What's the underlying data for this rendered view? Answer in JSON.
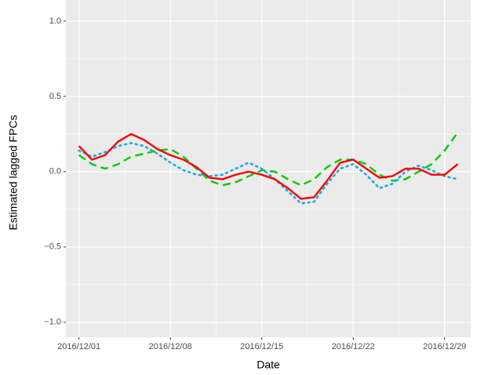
{
  "chart_data": {
    "type": "line",
    "x_label": "Date",
    "y_label": "Estimated lagged FPCs",
    "x": [
      "2016/12/01",
      "2016/12/02",
      "2016/12/03",
      "2016/12/04",
      "2016/12/05",
      "2016/12/06",
      "2016/12/07",
      "2016/12/08",
      "2016/12/09",
      "2016/12/10",
      "2016/12/11",
      "2016/12/12",
      "2016/12/13",
      "2016/12/14",
      "2016/12/15",
      "2016/12/16",
      "2016/12/17",
      "2016/12/18",
      "2016/12/19",
      "2016/12/20",
      "2016/12/21",
      "2016/12/22",
      "2016/12/23",
      "2016/12/24",
      "2016/12/25",
      "2016/12/26",
      "2016/12/27",
      "2016/12/28",
      "2016/12/29",
      "2016/12/30"
    ],
    "series": [
      {
        "color": "#00cc00",
        "dash": "dashed",
        "values": [
          0.11,
          0.05,
          0.02,
          0.05,
          0.1,
          0.12,
          0.14,
          0.15,
          0.1,
          0.02,
          -0.06,
          -0.09,
          -0.07,
          -0.03,
          0.01,
          0.0,
          -0.05,
          -0.09,
          -0.05,
          0.03,
          0.08,
          0.08,
          0.05,
          -0.02,
          -0.06,
          -0.05,
          0.0,
          0.05,
          0.14,
          0.26
        ]
      },
      {
        "color": "#1fa8e8",
        "dash": "dotted",
        "values": [
          0.14,
          0.1,
          0.13,
          0.17,
          0.19,
          0.17,
          0.12,
          0.06,
          0.01,
          -0.02,
          -0.03,
          -0.02,
          0.02,
          0.06,
          0.02,
          -0.05,
          -0.13,
          -0.21,
          -0.2,
          -0.08,
          0.02,
          0.05,
          -0.02,
          -0.11,
          -0.08,
          0.0,
          0.04,
          0.01,
          -0.03,
          -0.05
        ]
      },
      {
        "color": "#ff0000",
        "dash": "solid",
        "values": [
          0.17,
          0.08,
          0.11,
          0.2,
          0.25,
          0.21,
          0.15,
          0.11,
          0.08,
          0.03,
          -0.04,
          -0.05,
          -0.02,
          0.0,
          -0.02,
          -0.05,
          -0.11,
          -0.18,
          -0.17,
          -0.06,
          0.06,
          0.08,
          0.02,
          -0.04,
          -0.03,
          0.02,
          0.02,
          -0.02,
          -0.02,
          0.05
        ]
      }
    ],
    "xlim": [
      "2016/11/30",
      "2016/12/31"
    ],
    "xticks": [
      "2016/12/01",
      "2016/12/08",
      "2016/12/15",
      "2016/12/22",
      "2016/12/29"
    ],
    "ylim": [
      -1.1,
      1.14
    ],
    "yticks": [
      {
        "value": -1,
        "label": "−1.0"
      },
      {
        "value": -0.5,
        "label": "−0.5"
      },
      {
        "value": 0,
        "label": "0.0"
      },
      {
        "value": 0.5,
        "label": "0.5"
      },
      {
        "value": 1,
        "label": "1.0"
      }
    ],
    "grid": true,
    "grid_minor": true
  }
}
